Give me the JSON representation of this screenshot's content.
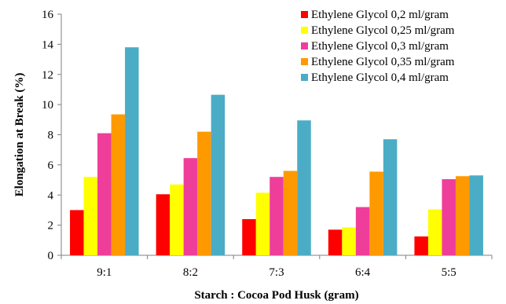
{
  "chart_data": {
    "type": "bar",
    "categories": [
      "9:1",
      "8:2",
      "7:3",
      "6:4",
      "5:5"
    ],
    "series": [
      {
        "name": "Ethylene Glycol 0,2 ml/gram",
        "color": "#ff0000",
        "values": [
          3.0,
          4.05,
          2.4,
          1.7,
          1.25
        ]
      },
      {
        "name": "Ethylene Glycol 0,25 ml/gram",
        "color": "#ffff00",
        "values": [
          5.2,
          4.7,
          4.15,
          1.85,
          3.05
        ]
      },
      {
        "name": "Ethylene Glycol 0,3 ml/gram",
        "color": "#ee3e9a",
        "values": [
          8.1,
          6.45,
          5.2,
          3.2,
          5.05
        ]
      },
      {
        "name": "Ethylene Glycol 0,35 ml/gram",
        "color": "#ff9900",
        "values": [
          9.35,
          8.2,
          5.6,
          5.55,
          5.25
        ]
      },
      {
        "name": "Ethylene Glycol 0,4 ml/gram",
        "color": "#4bacc6",
        "values": [
          13.8,
          10.65,
          8.95,
          7.7,
          5.3
        ]
      }
    ],
    "xlabel": "Starch : Cocoa Pod Husk (gram)",
    "ylabel": "Elongation at Break (%)",
    "ylim": [
      0,
      16
    ],
    "yticks": [
      "0",
      "2",
      "4",
      "6",
      "8",
      "10",
      "12",
      "14",
      "16"
    ],
    "grid": false,
    "legend_position": "top-right"
  }
}
